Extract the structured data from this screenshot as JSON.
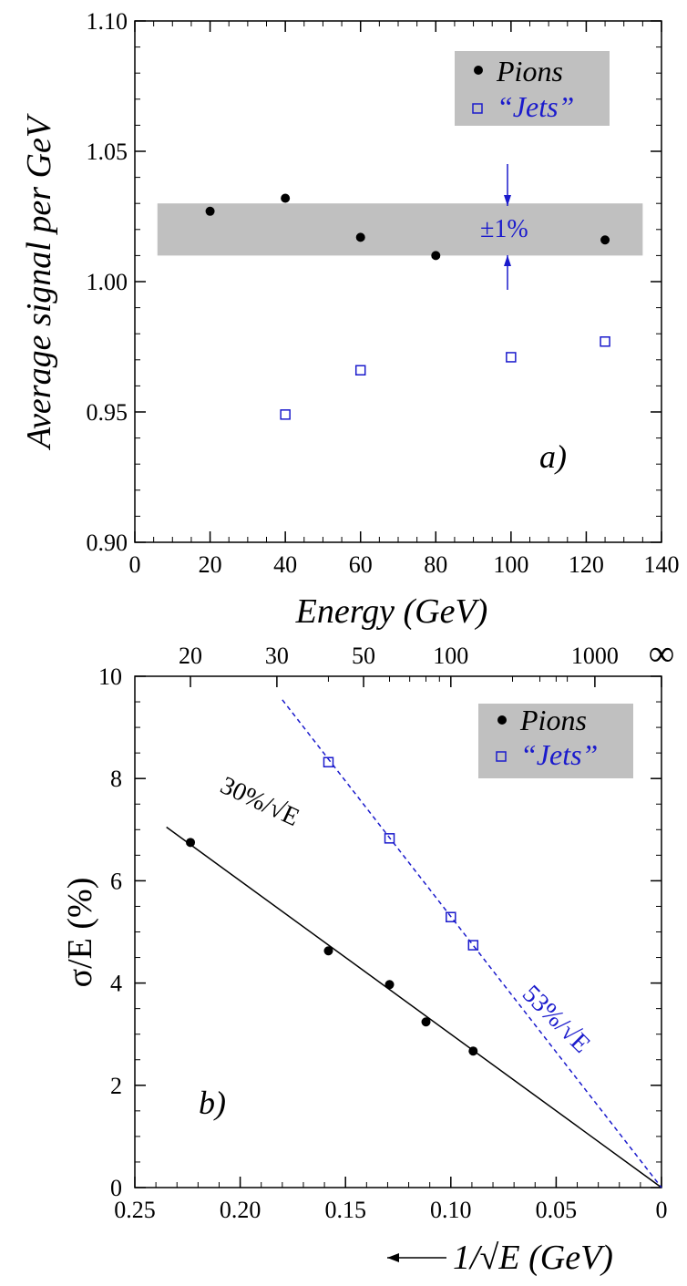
{
  "chart_data": [
    {
      "type": "scatter",
      "panel_label": "a)",
      "xlabel": "Energy (GeV)",
      "ylabel": "Average signal per GeV",
      "xlim": [
        0,
        140
      ],
      "ylim": [
        0.9,
        1.1
      ],
      "x_ticks": [
        "0",
        "20",
        "40",
        "60",
        "80",
        "100",
        "120",
        "140"
      ],
      "y_ticks": [
        "0.90",
        "0.95",
        "1.00",
        "1.05",
        "1.10"
      ],
      "band": {
        "y_range": [
          1.01,
          1.03
        ],
        "x_range": [
          6,
          135
        ],
        "color": "#c0c0c0"
      },
      "annotation": "±1%",
      "legend_position": "top-right",
      "series": [
        {
          "name": "Pions",
          "marker": "filled-circle",
          "color": "#000000",
          "x": [
            20,
            40,
            60,
            80,
            125
          ],
          "y": [
            1.027,
            1.032,
            1.017,
            1.01,
            1.016
          ]
        },
        {
          "name": "“Jets”",
          "marker": "open-square",
          "color": "#1a1acc",
          "x": [
            40,
            60,
            100,
            125
          ],
          "y": [
            0.949,
            0.966,
            0.971,
            0.977
          ]
        }
      ]
    },
    {
      "type": "scatter",
      "panel_label": "b)",
      "xlabel": "1/√E (GeV)",
      "ylabel": "σ/E (%)",
      "xlim": [
        0.25,
        0
      ],
      "ylim": [
        0,
        10
      ],
      "x_ticks": [
        "0.25",
        "0.20",
        "0.15",
        "0.10",
        "0.05",
        "0"
      ],
      "y_ticks": [
        "0",
        "2",
        "4",
        "6",
        "8",
        "10"
      ],
      "top_axis_ticks": [
        "20",
        "30",
        "50",
        "100",
        "1000",
        "∞"
      ],
      "legend_position": "top-right",
      "series": [
        {
          "name": "Pions",
          "marker": "filled-circle",
          "color": "#000000",
          "x": [
            0.2236,
            0.1581,
            0.1291,
            0.1118,
            0.0894
          ],
          "y": [
            6.75,
            4.63,
            3.97,
            3.24,
            2.67
          ]
        },
        {
          "name": "“Jets”",
          "marker": "open-square",
          "color": "#1a1acc",
          "x": [
            0.1581,
            0.1291,
            0.1,
            0.0894
          ],
          "y": [
            8.32,
            6.83,
            5.29,
            4.74
          ]
        }
      ],
      "fits": [
        {
          "label": "30%/√E",
          "slope": 30,
          "color": "#000000",
          "style": "solid",
          "x_range": [
            0.235,
            0
          ]
        },
        {
          "label": "53%/√E",
          "slope": 53,
          "color": "#1a1acc",
          "style": "dashed",
          "x_range": [
            0.18,
            0
          ]
        }
      ]
    }
  ],
  "colors": {
    "pions": "#000000",
    "jets": "#1a1acc",
    "band": "#c0c0c0",
    "legend_bg": "#c0c0c0"
  }
}
